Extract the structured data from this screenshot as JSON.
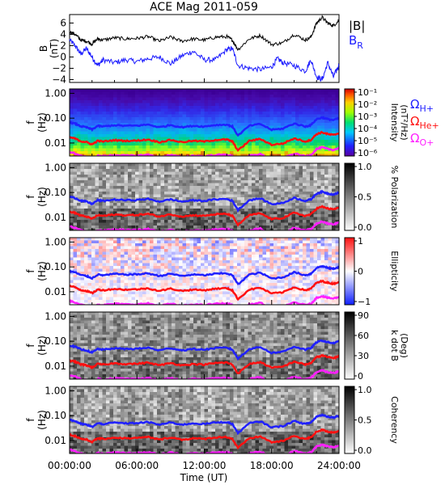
{
  "title": "ACE Mag 2011-059",
  "x_axis": {
    "label": "Time (UT)",
    "ticks": [
      "00:00:00",
      "06:00:00",
      "12:00:00",
      "18:00:00",
      "24:00:00"
    ]
  },
  "colors": {
    "B_total": "#000000",
    "B_R": "#1a1aff",
    "omega_H": "#2020ff",
    "omega_He": "#ff1010",
    "omega_O": "#ff20ff"
  },
  "legend_b": {
    "total": "|B|",
    "radial": "B",
    "radial_sub": "R"
  },
  "legend_gyro": [
    {
      "sym": "Ω",
      "sub": "H+",
      "color": "#2020ff"
    },
    {
      "sym": "Ω",
      "sub": "He+",
      "color": "#ff1010"
    },
    {
      "sym": "Ω",
      "sub": "O+",
      "color": "#ff20ff"
    }
  ],
  "chart_data": [
    {
      "type": "line",
      "panel": "B field",
      "ylabel": [
        "B",
        "(nT)"
      ],
      "yticks": [
        "6",
        "4",
        "2",
        "0",
        "−2",
        "−4"
      ],
      "ylim": [
        -4.5,
        7.5
      ],
      "xlim_hours": [
        0,
        24
      ],
      "series": [
        {
          "name": "|B|",
          "x": [
            0,
            0.5,
            1,
            1.5,
            2,
            2.5,
            3,
            4,
            5,
            6,
            7,
            8,
            9,
            10,
            11,
            12,
            13,
            14,
            14.5,
            15,
            16,
            17,
            18,
            19,
            20,
            21,
            21.5,
            22,
            22.5,
            23,
            23.5,
            24
          ],
          "y": [
            4.5,
            4.0,
            3.0,
            2.8,
            2.3,
            3.2,
            3.0,
            3.4,
            3.2,
            3.3,
            3.6,
            2.8,
            3.5,
            2.8,
            3.2,
            3.0,
            3.5,
            3.6,
            3.0,
            1.3,
            3.2,
            3.8,
            2.2,
            2.5,
            4.0,
            3.0,
            3.5,
            6.0,
            7.0,
            6.0,
            5.5,
            6.5
          ]
        },
        {
          "name": "BR",
          "x": [
            0,
            0.5,
            1,
            1.5,
            2,
            2.5,
            3,
            4,
            5,
            6,
            7,
            8,
            9,
            10,
            11,
            12,
            13,
            14,
            14.5,
            15,
            16,
            17,
            18,
            18.5,
            19,
            20,
            21,
            21.5,
            22,
            22.5,
            23,
            23.5,
            24
          ],
          "y": [
            3.0,
            2.0,
            0.5,
            1.5,
            0.0,
            -1.5,
            -0.5,
            -1.0,
            -0.5,
            -0.8,
            -0.3,
            0.0,
            -1.2,
            0.2,
            1.0,
            -0.5,
            -0.5,
            1.3,
            1.5,
            -1.5,
            -2.0,
            -2.2,
            -1.8,
            -0.3,
            -1.0,
            -1.5,
            -2.5,
            -0.5,
            -3.5,
            -4.0,
            -1.0,
            -3.5,
            -1.5
          ]
        }
      ]
    },
    {
      "type": "heatmap",
      "panel": "Intensity",
      "ylabel": [
        "f",
        "(Hz)"
      ],
      "yticks": [
        "1.00",
        "0.10",
        "0.01"
      ],
      "yscale": "log",
      "ylim": [
        0.003,
        1.5
      ],
      "colorbar": {
        "label": [
          "Intensity",
          "(nT²/Hz)"
        ],
        "ticks": [
          "10⁻¹",
          "10⁻²",
          "10⁻³",
          "10⁻⁴",
          "10⁻⁵",
          "10⁻⁶"
        ]
      }
    },
    {
      "type": "heatmap",
      "panel": "Polarization",
      "ylabel": [
        "f",
        "(Hz)"
      ],
      "yticks": [
        "1.00",
        "0.10",
        "0.01"
      ],
      "yscale": "log",
      "colorbar": {
        "label": [
          "% Polarization"
        ],
        "ticks": [
          "1.0",
          "0.5",
          "0.0"
        ]
      }
    },
    {
      "type": "heatmap",
      "panel": "Ellipticity",
      "ylabel": [
        "f",
        "(Hz)"
      ],
      "yticks": [
        "1.00",
        "0.10",
        "0.01"
      ],
      "yscale": "log",
      "colorbar": {
        "label": [
          "Ellipticity"
        ],
        "ticks": [
          "1",
          "0",
          "−1"
        ]
      }
    },
    {
      "type": "heatmap",
      "panel": "k dot B",
      "ylabel": [
        "f",
        "(Hz)"
      ],
      "yticks": [
        "1.00",
        "0.10",
        "0.01"
      ],
      "yscale": "log",
      "colorbar": {
        "label": [
          "k dot B",
          "(Deg)"
        ],
        "ticks": [
          "90",
          "60",
          "30",
          "0"
        ]
      }
    },
    {
      "type": "heatmap",
      "panel": "Coherency",
      "ylabel": [
        "f",
        "(Hz)"
      ],
      "yticks": [
        "1.00",
        "0.10",
        "0.01"
      ],
      "yscale": "log",
      "colorbar": {
        "label": [
          "Coherency"
        ],
        "ticks": [
          "1.0",
          "0.5",
          "0.0"
        ]
      }
    },
    {
      "type": "line",
      "panel": "gyrofrequency overlays (all spectral panels)",
      "yscale": "log",
      "series": [
        {
          "name": "ΩH+",
          "x": [
            0,
            0.5,
            1,
            1.5,
            2,
            2.5,
            3,
            4,
            5,
            6,
            7,
            8,
            9,
            10,
            11,
            12,
            13,
            14,
            14.5,
            15,
            16,
            17,
            18,
            19,
            20,
            21,
            21.5,
            22,
            22.5,
            23,
            23.5,
            24
          ],
          "y": [
            0.068,
            0.06,
            0.047,
            0.043,
            0.035,
            0.049,
            0.046,
            0.052,
            0.049,
            0.05,
            0.055,
            0.043,
            0.053,
            0.043,
            0.049,
            0.046,
            0.053,
            0.055,
            0.046,
            0.02,
            0.049,
            0.058,
            0.034,
            0.038,
            0.061,
            0.046,
            0.053,
            0.091,
            0.107,
            0.091,
            0.084,
            0.099
          ]
        },
        {
          "name": "ΩHe+",
          "x": [
            0,
            0.5,
            1,
            1.5,
            2,
            2.5,
            3,
            4,
            5,
            6,
            7,
            8,
            9,
            10,
            11,
            12,
            13,
            14,
            14.5,
            15,
            16,
            17,
            18,
            19,
            20,
            21,
            21.5,
            22,
            22.5,
            23,
            23.5,
            24
          ],
          "y": [
            0.017,
            0.015,
            0.0118,
            0.0108,
            0.0088,
            0.0122,
            0.0115,
            0.013,
            0.0122,
            0.0125,
            0.0138,
            0.0108,
            0.0133,
            0.0108,
            0.0122,
            0.0115,
            0.0133,
            0.0138,
            0.0115,
            0.005,
            0.0122,
            0.0145,
            0.0085,
            0.0095,
            0.0153,
            0.0115,
            0.0133,
            0.0228,
            0.0268,
            0.0228,
            0.021,
            0.0248
          ]
        },
        {
          "name": "ΩO+",
          "x": [
            0,
            0.5,
            1,
            1.5,
            2,
            2.5,
            3,
            4,
            5,
            6,
            7,
            8,
            9,
            10,
            11,
            12,
            13,
            14,
            14.5,
            15,
            16,
            17,
            18,
            19,
            20,
            21,
            21.5,
            22,
            22.5,
            23,
            23.5,
            24
          ],
          "y": [
            0.0043,
            0.0038,
            0.003,
            0.0027,
            0.0022,
            0.0031,
            0.0029,
            0.0033,
            0.0031,
            0.0031,
            0.0034,
            0.0027,
            0.0033,
            0.0027,
            0.0031,
            0.0029,
            0.0033,
            0.0034,
            0.0029,
            0.0013,
            0.0031,
            0.0036,
            0.0021,
            0.0024,
            0.0038,
            0.0029,
            0.0033,
            0.0057,
            0.0067,
            0.0057,
            0.0053,
            0.0062
          ]
        }
      ]
    }
  ]
}
